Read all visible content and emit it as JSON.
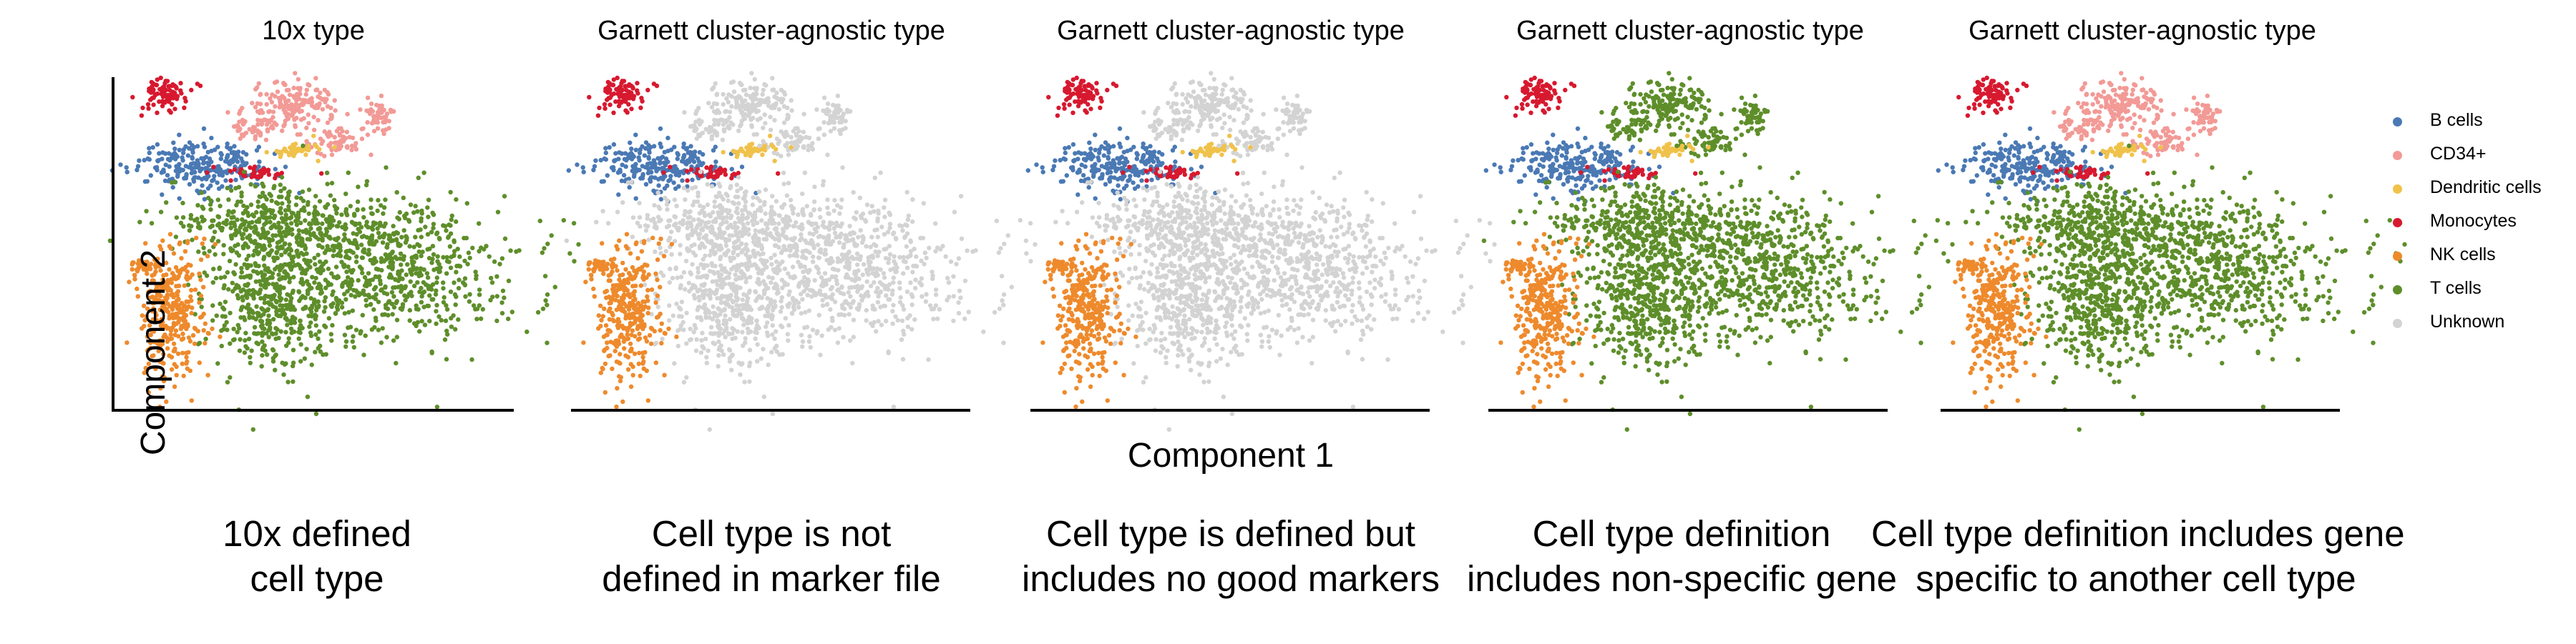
{
  "chart_data": {
    "type": "scatter",
    "xlabel": "Component 1",
    "ylabel": "Component 2",
    "legend_position": "right",
    "legend": [
      {
        "name": "B cells",
        "color": "#4a79b4"
      },
      {
        "name": "CD34+",
        "color": "#f29a96"
      },
      {
        "name": "Dendritic cells",
        "color": "#f0c24a"
      },
      {
        "name": "Monocytes",
        "color": "#d7192f"
      },
      {
        "name": "NK cells",
        "color": "#ee8a2c"
      },
      {
        "name": "T cells",
        "color": "#5e8e2a"
      },
      {
        "name": "Unknown",
        "color": "#d3d3d3"
      }
    ],
    "panels": [
      {
        "title": "10x type",
        "caption": [
          "10x defined",
          "cell type"
        ],
        "assignments": {
          "B cells": "B cells",
          "CD34+": "CD34+",
          "Dendritic cells": "Dendritic cells",
          "Monocytes": "Monocytes",
          "NK cells": "NK cells",
          "T cells": "T cells"
        }
      },
      {
        "title": "Garnett cluster-agnostic type",
        "caption": [
          "Cell type is not",
          "defined in marker file"
        ],
        "assignments": {
          "B cells": "B cells",
          "CD34+": "Unknown",
          "Dendritic cells": "Dendritic cells",
          "Monocytes": "Monocytes",
          "NK cells": "NK cells",
          "T cells": "Unknown"
        }
      },
      {
        "title": "Garnett cluster-agnostic type",
        "caption": [
          "Cell type is defined but",
          "includes no good markers"
        ],
        "assignments": {
          "B cells": "B cells",
          "CD34+": "Unknown",
          "Dendritic cells": "Dendritic cells",
          "Monocytes": "Monocytes",
          "NK cells": "NK cells",
          "T cells": "Unknown"
        }
      },
      {
        "title": "Garnett cluster-agnostic type",
        "caption": [
          "Cell type definition",
          "includes non-specific gene"
        ],
        "assignments": {
          "B cells": "B cells",
          "CD34+": "T cells",
          "Dendritic cells": "Dendritic cells",
          "Monocytes": "Monocytes",
          "NK cells": "NK cells",
          "T cells": "T cells"
        }
      },
      {
        "title": "Garnett cluster-agnostic type",
        "caption": [
          "Cell type definition includes gene",
          "specific to another cell type"
        ],
        "assignments": {
          "B cells": "B cells",
          "CD34+": "CD34+",
          "Dendritic cells": "Dendritic cells",
          "Monocytes": "Monocytes",
          "NK cells": "NK cells",
          "T cells": "T cells"
        }
      }
    ]
  }
}
